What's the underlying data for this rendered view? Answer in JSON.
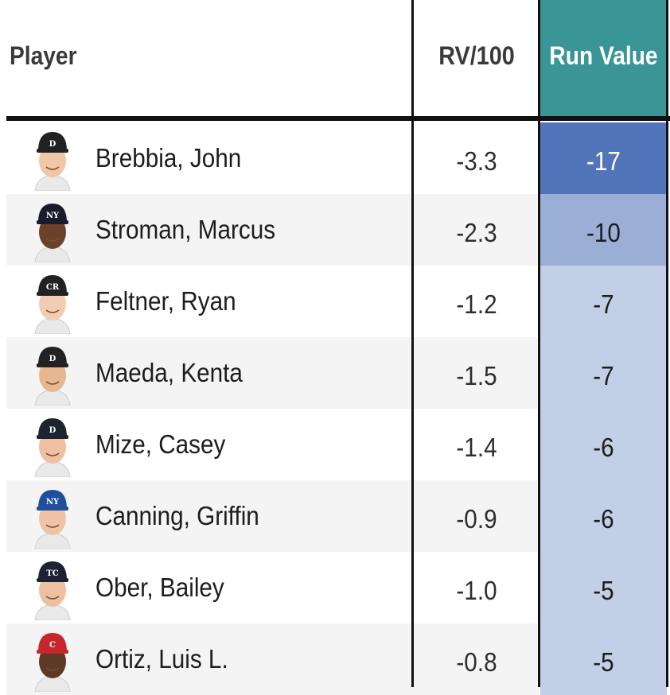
{
  "headers": {
    "player": "Player",
    "rv100": "RV/100",
    "run_value": "Run Value"
  },
  "colors": {
    "header_accent": "#3a9597",
    "run_value_dark": "#5175b8",
    "run_value_mid": "#9aaed6",
    "run_value_light": "#c3cfe6"
  },
  "rows": [
    {
      "name": "Brebbia, John",
      "rv100": "-3.3",
      "run_value": "-17",
      "cap_color": "#222",
      "logo": "D",
      "skin": "#f0c7a8",
      "shade": "dark"
    },
    {
      "name": "Stroman, Marcus",
      "rv100": "-2.3",
      "run_value": "-10",
      "cap_color": "#1b1b2b",
      "logo": "NY",
      "skin": "#6b4128",
      "shade": "mid"
    },
    {
      "name": "Feltner, Ryan",
      "rv100": "-1.2",
      "run_value": "-7",
      "cap_color": "#222",
      "logo": "CR",
      "skin": "#f3cdb2",
      "shade": "light"
    },
    {
      "name": "Maeda, Kenta",
      "rv100": "-1.5",
      "run_value": "-7",
      "cap_color": "#222",
      "logo": "D",
      "skin": "#e7b890",
      "shade": "light"
    },
    {
      "name": "Mize, Casey",
      "rv100": "-1.4",
      "run_value": "-6",
      "cap_color": "#1e2430",
      "logo": "D",
      "skin": "#eebfa0",
      "shade": "light"
    },
    {
      "name": "Canning, Griffin",
      "rv100": "-0.9",
      "run_value": "-6",
      "cap_color": "#1d4f9c",
      "logo": "NY",
      "skin": "#efc4a6",
      "shade": "light"
    },
    {
      "name": "Ober, Bailey",
      "rv100": "-1.0",
      "run_value": "-5",
      "cap_color": "#1c2233",
      "logo": "TC",
      "skin": "#eec0a2",
      "shade": "light"
    },
    {
      "name": "Ortiz, Luis L.",
      "rv100": "-0.8",
      "run_value": "-5",
      "cap_color": "#c8262d",
      "logo": "C",
      "skin": "#5c3a26",
      "shade": "light"
    }
  ]
}
